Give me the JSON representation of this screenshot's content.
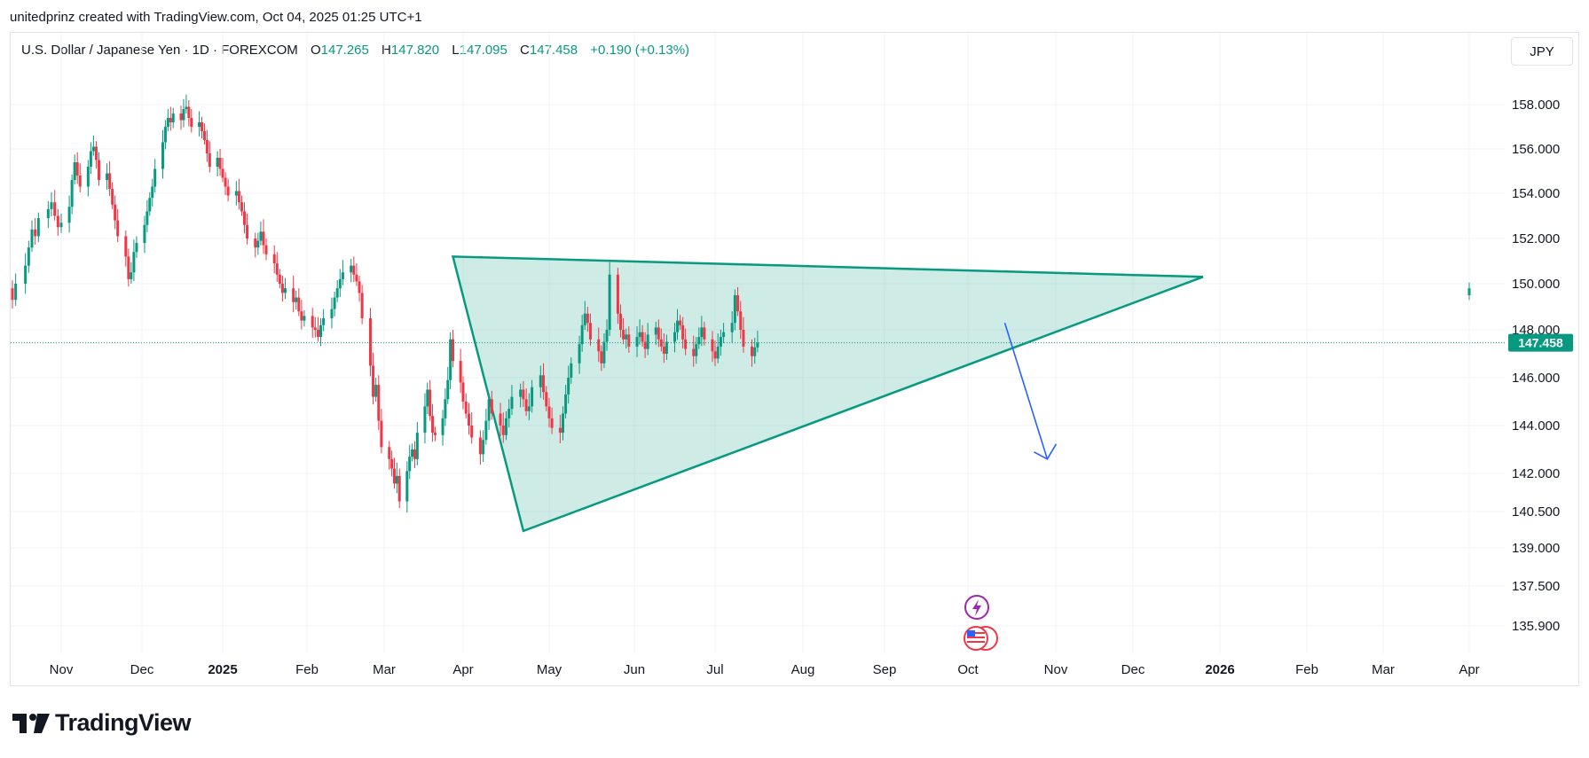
{
  "header": {
    "attribution": "unitedprinz created with TradingView.com, Oct 04, 2025 01:25 UTC+1"
  },
  "legend": {
    "symbol": "U.S. Dollar / Japanese Yen · 1D · FOREXCOM",
    "open_label": "O",
    "open": "147.265",
    "high_label": "H",
    "high": "147.820",
    "low_label": "L",
    "low": "147.095",
    "close_label": "C",
    "close": "147.458",
    "change": "+0.190 (+0.13%)"
  },
  "currency_button": "JPY",
  "footer": {
    "brand": "TradingView"
  },
  "colors": {
    "up": "#089981",
    "down": "#f23645",
    "triangle": "#089981",
    "arrow": "#2962ff",
    "grid": "#f0f3fa"
  },
  "icons": [
    "lightning-event-icon",
    "us-flag-event-icon"
  ],
  "chart_data": {
    "type": "candlestick",
    "symbol": "USDJPY",
    "timeframe": "1D",
    "last_price": "147.458",
    "y_ticks": [
      "158.000",
      "156.000",
      "154.000",
      "152.000",
      "150.000",
      "148.000",
      "146.000",
      "144.000",
      "142.000",
      "140.500",
      "139.000",
      "137.500",
      "135.900"
    ],
    "x_ticks": [
      {
        "label": "Nov",
        "bold": false
      },
      {
        "label": "Dec",
        "bold": false
      },
      {
        "label": "2025",
        "bold": true
      },
      {
        "label": "Feb",
        "bold": false
      },
      {
        "label": "Mar",
        "bold": false
      },
      {
        "label": "Apr",
        "bold": false
      },
      {
        "label": "May",
        "bold": false
      },
      {
        "label": "Jun",
        "bold": false
      },
      {
        "label": "Jul",
        "bold": false
      },
      {
        "label": "Aug",
        "bold": false
      },
      {
        "label": "Sep",
        "bold": false
      },
      {
        "label": "Oct",
        "bold": false
      },
      {
        "label": "Nov",
        "bold": false
      },
      {
        "label": "Dec",
        "bold": false
      },
      {
        "label": "2026",
        "bold": true
      },
      {
        "label": "Feb",
        "bold": false
      },
      {
        "label": "Mar",
        "bold": false
      },
      {
        "label": "Apr",
        "bold": false
      }
    ],
    "closes": [
      149.8,
      149.3,
      150.0,
      150.8,
      151.6,
      152.4,
      152.1,
      152.9,
      153.3,
      153.6,
      153.0,
      152.5,
      152.7,
      153.4,
      154.6,
      155.4,
      154.8,
      154.3,
      155.2,
      155.9,
      156.1,
      155.5,
      154.6,
      154.9,
      154.2,
      153.5,
      152.8,
      152.1,
      151.2,
      150.2,
      150.5,
      151.4,
      151.8,
      152.6,
      153.2,
      153.8,
      154.3,
      155.1,
      156.3,
      157.0,
      157.4,
      157.2,
      157.6,
      157.3,
      157.8,
      157.9,
      157.4,
      157.0,
      157.2,
      156.8,
      156.4,
      155.8,
      155.2,
      155.6,
      155.1,
      154.7,
      154.3,
      153.9,
      154.1,
      153.6,
      153.2,
      152.6,
      152.0,
      151.6,
      151.9,
      152.3,
      151.7,
      151.3,
      150.9,
      150.4,
      150.0,
      149.6,
      149.8,
      149.2,
      149.4,
      148.8,
      148.4,
      148.6,
      148.1,
      148.0,
      147.7,
      148.2,
      148.5,
      148.9,
      149.4,
      149.8,
      150.2,
      150.5,
      150.8,
      150.4,
      150.1,
      149.6,
      148.5,
      146.5,
      145.2,
      145.7,
      144.2,
      143.1,
      142.6,
      142.2,
      141.6,
      141.9,
      140.9,
      142.1,
      142.7,
      143.0,
      142.6,
      143.7,
      144.8,
      145.5,
      144.4,
      143.7,
      143.6,
      144.3,
      145.1,
      145.9,
      147.6,
      146.7,
      145.8,
      145.0,
      144.5,
      144.0,
      143.5,
      142.8,
      143.4,
      144.2,
      145.1,
      144.5,
      144.0,
      143.6,
      144.3,
      144.7,
      145.2,
      145.5,
      145.1,
      144.6,
      144.8,
      145.6,
      146.1,
      145.4,
      144.8,
      144.3,
      143.9,
      143.7,
      144.5,
      145.3,
      146.0,
      146.6,
      147.4,
      148.2,
      148.7,
      148.3,
      147.6,
      147.1,
      146.6,
      147.5,
      148.0,
      150.4,
      148.7,
      148.0,
      147.6,
      147.8,
      147.3,
      147.7,
      147.9,
      147.5,
      147.2,
      147.8,
      148.1,
      147.6,
      147.3,
      147.0,
      147.5,
      147.9,
      148.4,
      148.2,
      147.6,
      147.2,
      146.9,
      147.4,
      147.7,
      148.1,
      147.6,
      147.1,
      146.8,
      147.3,
      147.7,
      147.9,
      148.3,
      149.5,
      148.8,
      148.0,
      147.3,
      146.9,
      147.265,
      147.458
    ],
    "triangle": [
      {
        "date": "2025-03-28",
        "price": 151.2
      },
      {
        "date": "2025-04-22",
        "price": 139.7
      },
      {
        "date": "2025-12-26",
        "price": 150.3
      }
    ],
    "arrow": {
      "from": {
        "date": "2025-10-14",
        "price": 148.3
      },
      "to": {
        "date": "2025-10-29",
        "price": 142.6
      }
    },
    "grid": true
  }
}
